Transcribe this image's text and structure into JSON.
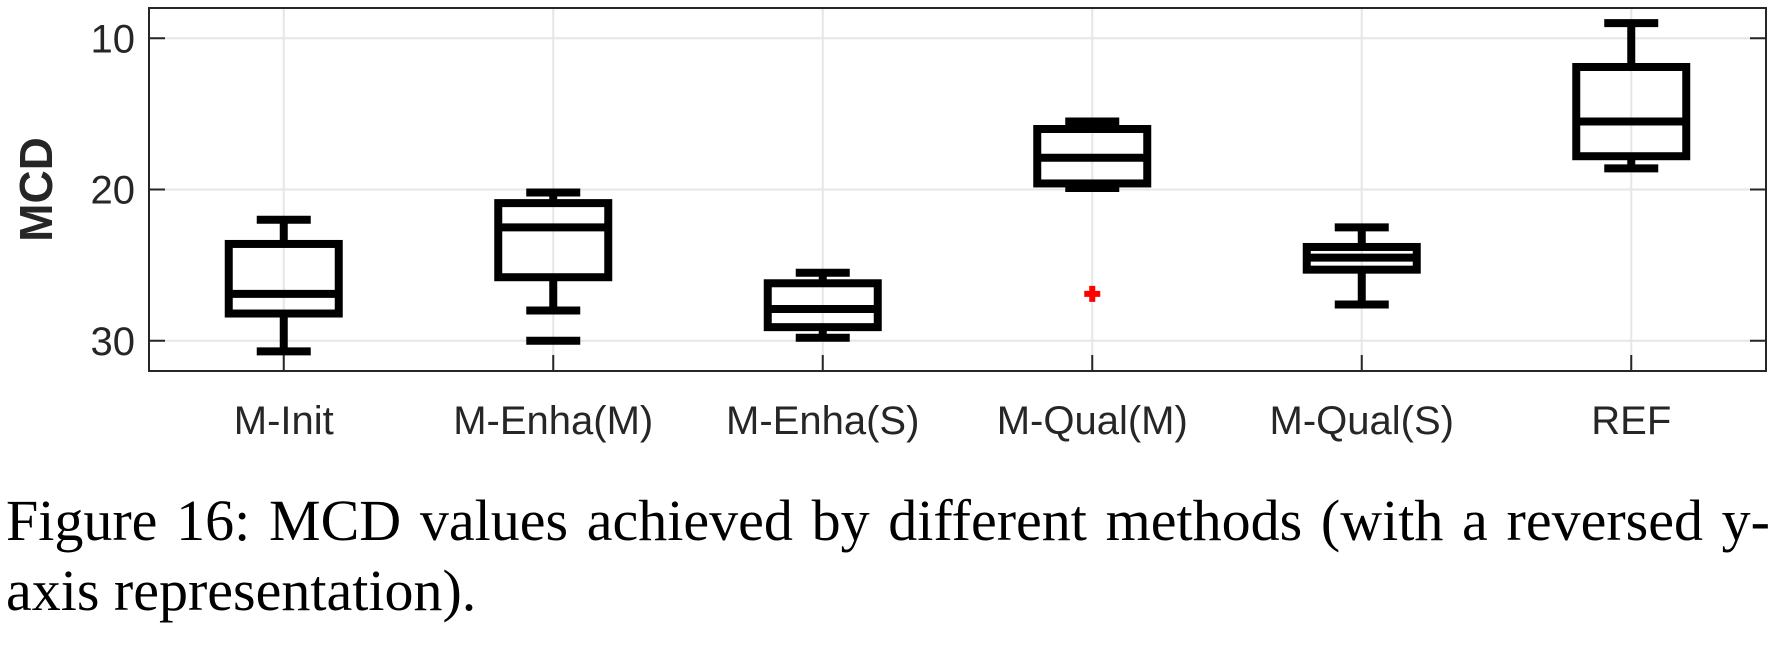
{
  "chart_data": {
    "type": "box",
    "ylabel": "MCD",
    "y_reversed": true,
    "ylim": [
      8,
      32
    ],
    "yticks": [
      10,
      20,
      30
    ],
    "grid": true,
    "categories": [
      "M-Init",
      "M-Enha(M)",
      "M-Enha(S)",
      "M-Qual(M)",
      "M-Qual(S)",
      "REF"
    ],
    "boxes": [
      {
        "category": "M-Init",
        "whisker_low": 22.0,
        "q1": 23.6,
        "median": 26.9,
        "q3": 28.2,
        "whisker_high": 30.7,
        "outliers": []
      },
      {
        "category": "M-Enha(M)",
        "whisker_low": 20.2,
        "q1": 20.9,
        "median": 22.5,
        "q3": 25.8,
        "whisker_high": 28.0,
        "outliers": [
          30.0
        ]
      },
      {
        "category": "M-Enha(S)",
        "whisker_low": 25.5,
        "q1": 26.2,
        "median": 27.9,
        "q3": 29.1,
        "whisker_high": 29.8,
        "outliers": []
      },
      {
        "category": "M-Qual(M)",
        "whisker_low": 15.5,
        "q1": 16.0,
        "median": 17.9,
        "q3": 19.6,
        "whisker_high": 19.9,
        "outliers": [
          26.9
        ]
      },
      {
        "category": "M-Qual(S)",
        "whisker_low": 22.5,
        "q1": 23.8,
        "median": 24.5,
        "q3": 25.3,
        "whisker_high": 27.6,
        "outliers": []
      },
      {
        "category": "REF",
        "whisker_low": 9.0,
        "q1": 11.9,
        "median": 15.5,
        "q3": 17.8,
        "whisker_high": 18.6,
        "outliers": []
      }
    ],
    "colors": {
      "box": "#000000",
      "outlier_red": "#ff0000",
      "outlier_black": "#000000",
      "grid": "#e6e6e6",
      "axis": "#262626"
    }
  },
  "caption": "Figure 16: MCD values achieved by different methods (with a reversed y-axis representation)."
}
